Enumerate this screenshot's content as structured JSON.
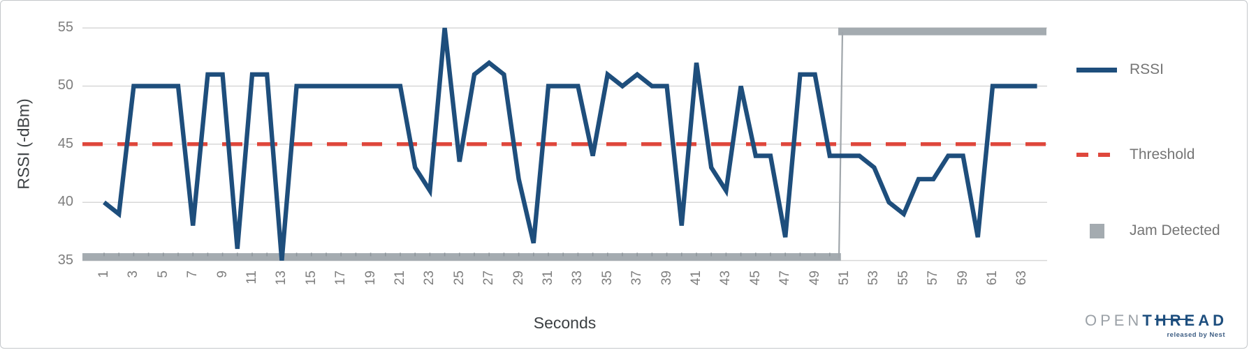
{
  "chart_data": {
    "type": "line",
    "title": "",
    "xlabel": "Seconds",
    "ylabel": "RSSI (-dBm)",
    "x_range": [
      1,
      64
    ],
    "ylim": [
      35,
      55
    ],
    "grid": true,
    "legend_position": "right",
    "y_ticks": [
      55,
      50,
      45,
      40,
      35
    ],
    "x_tick_labels": [
      "1",
      "3",
      "5",
      "7",
      "9",
      "11",
      "13",
      "15",
      "17",
      "19",
      "21",
      "23",
      "25",
      "27",
      "29",
      "31",
      "33",
      "35",
      "37",
      "39",
      "41",
      "43",
      "45",
      "47",
      "49",
      "51",
      "53",
      "55",
      "57",
      "59",
      "61",
      "63"
    ],
    "series": [
      {
        "name": "RSSI",
        "type": "line",
        "color": "#1e4e7c",
        "values": [
          40,
          39,
          50,
          50,
          50,
          50,
          38,
          51,
          51,
          36,
          51,
          51,
          35,
          50,
          50,
          50,
          50,
          50,
          50,
          50,
          50,
          43,
          41,
          55,
          43.5,
          51,
          52,
          51,
          42,
          36.5,
          50,
          50,
          50,
          44,
          51,
          50,
          51,
          50,
          50,
          38,
          52,
          43,
          41,
          50,
          44,
          44,
          37,
          51,
          51,
          44,
          44,
          44,
          43,
          40,
          39,
          42,
          42,
          44,
          44,
          37,
          50,
          50,
          50,
          50
        ]
      },
      {
        "name": "Threshold",
        "type": "constant-line",
        "style": "dashed",
        "color": "#df473c",
        "value": 45
      },
      {
        "name": "Jam Detected",
        "type": "level-step",
        "color": "#a4abb0",
        "connector_color": "#a0a6ab",
        "segments": [
          {
            "from_second": 1,
            "to_second": 50,
            "jam": false,
            "level": 35.3
          },
          {
            "from_second": 51,
            "to_second": 64,
            "jam": true,
            "level": 54.7
          }
        ]
      }
    ]
  },
  "logo": {
    "open": "OPEN",
    "thread": "THREAD",
    "tagline": "released by Nest"
  }
}
